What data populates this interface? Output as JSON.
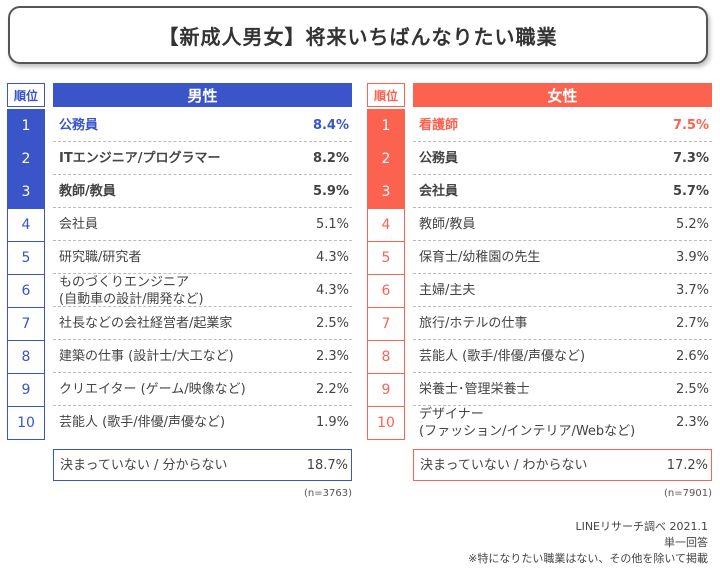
{
  "title": "【新成人男女】将来いちばんなりたい職業",
  "colors": {
    "male": "#3a55c8",
    "female": "#fb6350"
  },
  "chart_data": {
    "type": "table",
    "title": "【新成人男女】将来いちばんなりたい職業",
    "rank_header": "順位",
    "tables": [
      {
        "name": "男性",
        "rows": [
          {
            "rank": "1",
            "label": "公務員",
            "value": "8.4%",
            "highlight": "accent"
          },
          {
            "rank": "2",
            "label": "ITエンジニア/プログラマー",
            "value": "8.2%",
            "highlight": "bold"
          },
          {
            "rank": "3",
            "label": "教師/教員",
            "value": "5.9%",
            "highlight": "bold"
          },
          {
            "rank": "4",
            "label": "会社員",
            "value": "5.1%",
            "highlight": ""
          },
          {
            "rank": "5",
            "label": "研究職/研究者",
            "value": "4.3%",
            "highlight": ""
          },
          {
            "rank": "6",
            "label": "ものづくりエンジニア\n(自動車の設計/開発など)",
            "value": "4.3%",
            "highlight": ""
          },
          {
            "rank": "7",
            "label": "社長などの会社経営者/起業家",
            "value": "2.5%",
            "highlight": ""
          },
          {
            "rank": "8",
            "label": "建築の仕事 (設計士/大工など)",
            "value": "2.3%",
            "highlight": ""
          },
          {
            "rank": "9",
            "label": "クリエイター (ゲーム/映像など)",
            "value": "2.2%",
            "highlight": ""
          },
          {
            "rank": "10",
            "label": "芸能人 (歌手/俳優/声優など)",
            "value": "1.9%",
            "highlight": ""
          }
        ],
        "undecided": {
          "label": "決まっていない / 分からない",
          "value": "18.7%"
        },
        "n": "(n=3763)"
      },
      {
        "name": "女性",
        "rows": [
          {
            "rank": "1",
            "label": "看護師",
            "value": "7.5%",
            "highlight": "accent"
          },
          {
            "rank": "2",
            "label": "公務員",
            "value": "7.3%",
            "highlight": "bold"
          },
          {
            "rank": "3",
            "label": "会社員",
            "value": "5.7%",
            "highlight": "bold"
          },
          {
            "rank": "4",
            "label": "教師/教員",
            "value": "5.2%",
            "highlight": ""
          },
          {
            "rank": "5",
            "label": "保育士/幼稚園の先生",
            "value": "3.9%",
            "highlight": ""
          },
          {
            "rank": "6",
            "label": "主婦/主夫",
            "value": "3.7%",
            "highlight": ""
          },
          {
            "rank": "7",
            "label": "旅行/ホテルの仕事",
            "value": "2.7%",
            "highlight": ""
          },
          {
            "rank": "8",
            "label": "芸能人 (歌手/俳優/声優など)",
            "value": "2.6%",
            "highlight": ""
          },
          {
            "rank": "9",
            "label": "栄養士･管理栄養士",
            "value": "2.5%",
            "highlight": ""
          },
          {
            "rank": "10",
            "label": "デザイナー\n(ファッション/インテリア/Webなど)",
            "value": "2.3%",
            "highlight": ""
          }
        ],
        "undecided": {
          "label": "決まっていない / わからない",
          "value": "17.2%"
        },
        "n": "(n=7901)"
      }
    ]
  },
  "footer": {
    "source": "LINEリサーチ調べ 2021.1",
    "method": "単一回答",
    "note": "※特になりたい職業はない、その他を除いて掲載"
  }
}
